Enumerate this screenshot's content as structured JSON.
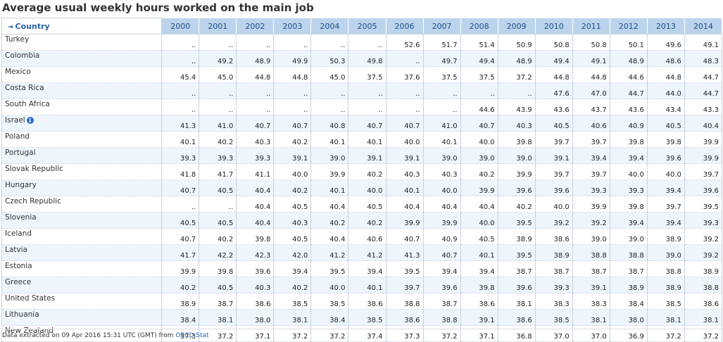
{
  "title": "Average usual weekly hours worked on the main job",
  "table": {
    "country_header": "Country",
    "years": [
      "2000",
      "2001",
      "2002",
      "2003",
      "2004",
      "2005",
      "2006",
      "2007",
      "2008",
      "2009",
      "2010",
      "2011",
      "2012",
      "2013",
      "2014"
    ],
    "rows": [
      {
        "country": "Turkey",
        "info": false,
        "values": [
          "..",
          "..",
          "..",
          "..",
          "..",
          "..",
          "52.6",
          "51.7",
          "51.4",
          "50.9",
          "50.8",
          "50.8",
          "50.1",
          "49.6",
          "49.1"
        ]
      },
      {
        "country": "Colombia",
        "info": false,
        "values": [
          "..",
          "49.2",
          "48.9",
          "49.9",
          "50.3",
          "49.8",
          "..",
          "49.7",
          "49.4",
          "48.9",
          "49.4",
          "49.1",
          "48.9",
          "48.6",
          "48.3"
        ]
      },
      {
        "country": "Mexico",
        "info": false,
        "values": [
          "45.4",
          "45.0",
          "44.8",
          "44.8",
          "45.0",
          "37.5",
          "37.6",
          "37.5",
          "37.5",
          "37.2",
          "44.8",
          "44.8",
          "44.6",
          "44.8",
          "44.7"
        ]
      },
      {
        "country": "Costa Rica",
        "info": false,
        "values": [
          "..",
          "..",
          "..",
          "..",
          "..",
          "..",
          "..",
          "..",
          "..",
          "..",
          "47.6",
          "47.0",
          "44.7",
          "44.0",
          "44.7"
        ]
      },
      {
        "country": "South Africa",
        "info": false,
        "values": [
          "..",
          "..",
          "..",
          "..",
          "..",
          "..",
          "..",
          "..",
          "44.6",
          "43.9",
          "43.6",
          "43.7",
          "43.6",
          "43.4",
          "43.3"
        ]
      },
      {
        "country": "Israel",
        "info": true,
        "values": [
          "41.3",
          "41.0",
          "40.7",
          "40.7",
          "40.8",
          "40.7",
          "40.7",
          "41.0",
          "40.7",
          "40.3",
          "40.5",
          "40.6",
          "40.9",
          "40.5",
          "40.4"
        ]
      },
      {
        "country": "Poland",
        "info": false,
        "values": [
          "40.1",
          "40.2",
          "40.3",
          "40.2",
          "40.1",
          "40.1",
          "40.0",
          "40.1",
          "40.0",
          "39.8",
          "39.7",
          "39.7",
          "39.8",
          "39.8",
          "39.9"
        ]
      },
      {
        "country": "Portugal",
        "info": false,
        "values": [
          "39.3",
          "39.3",
          "39.3",
          "39.1",
          "39.0",
          "39.1",
          "39.1",
          "39.0",
          "39.0",
          "39.0",
          "39.1",
          "39.4",
          "39.4",
          "39.6",
          "39.9"
        ]
      },
      {
        "country": "Slovak Republic",
        "info": false,
        "values": [
          "41.8",
          "41.7",
          "41.1",
          "40.0",
          "39.9",
          "40.2",
          "40.3",
          "40.3",
          "40.2",
          "39.9",
          "39.7",
          "39.7",
          "40.0",
          "40.0",
          "39.7"
        ]
      },
      {
        "country": "Hungary",
        "info": false,
        "values": [
          "40.7",
          "40.5",
          "40.4",
          "40.2",
          "40.1",
          "40.0",
          "40.1",
          "40.0",
          "39.9",
          "39.6",
          "39.6",
          "39.3",
          "39.3",
          "39.4",
          "39.6"
        ]
      },
      {
        "country": "Czech Republic",
        "info": false,
        "values": [
          "..",
          "..",
          "40.4",
          "40.5",
          "40.4",
          "40.5",
          "40.4",
          "40.4",
          "40.4",
          "40.2",
          "40.0",
          "39.9",
          "39.8",
          "39.7",
          "39.5"
        ]
      },
      {
        "country": "Slovenia",
        "info": false,
        "values": [
          "40.5",
          "40.5",
          "40.4",
          "40.3",
          "40.2",
          "40.2",
          "39.9",
          "39.9",
          "40.0",
          "39.5",
          "39.2",
          "39.2",
          "39.4",
          "39.4",
          "39.3"
        ]
      },
      {
        "country": "Iceland",
        "info": false,
        "values": [
          "40.7",
          "40.2",
          "39.8",
          "40.5",
          "40.4",
          "40.6",
          "40.7",
          "40.9",
          "40.5",
          "38.9",
          "38.6",
          "39.0",
          "39.0",
          "38.9",
          "39.2"
        ]
      },
      {
        "country": "Latvia",
        "info": false,
        "values": [
          "41.7",
          "42.2",
          "42.3",
          "42.0",
          "41.2",
          "41.2",
          "41.3",
          "40.7",
          "40.1",
          "39.5",
          "38.9",
          "38.8",
          "38.8",
          "39.0",
          "39.2"
        ]
      },
      {
        "country": "Estonia",
        "info": false,
        "values": [
          "39.9",
          "39.8",
          "39.6",
          "39.4",
          "39.5",
          "39.4",
          "39.5",
          "39.4",
          "39.4",
          "38.7",
          "38.7",
          "38.7",
          "38.7",
          "38.8",
          "38.9"
        ]
      },
      {
        "country": "Greece",
        "info": false,
        "values": [
          "40.2",
          "40.5",
          "40.3",
          "40.2",
          "40.0",
          "40.1",
          "39.7",
          "39.6",
          "39.8",
          "39.6",
          "39.3",
          "39.1",
          "38.9",
          "38.9",
          "38.8"
        ]
      },
      {
        "country": "United States",
        "info": false,
        "values": [
          "38.9",
          "38.7",
          "38.6",
          "38.5",
          "38.5",
          "38.6",
          "38.8",
          "38.7",
          "38.6",
          "38.1",
          "38.3",
          "38.3",
          "38.4",
          "38.5",
          "38.6"
        ]
      },
      {
        "country": "Lithuania",
        "info": false,
        "values": [
          "38.4",
          "38.1",
          "38.0",
          "38.1",
          "38.4",
          "38.5",
          "38.6",
          "38.8",
          "39.1",
          "38.6",
          "38.5",
          "38.1",
          "38.0",
          "38.1",
          "38.1"
        ]
      },
      {
        "country": "New Zealand",
        "info": false,
        "values": [
          "37.3",
          "37.2",
          "37.1",
          "37.2",
          "37.2",
          "37.4",
          "37.3",
          "37.2",
          "37.1",
          "36.8",
          "37.0",
          "37.0",
          "36.9",
          "37.2",
          "37.2"
        ]
      }
    ]
  },
  "footer": {
    "text": "Data extracted on 09 Apr 2016 15:31 UTC (GMT) from ",
    "link_text": "OECD.Stat"
  },
  "icons": {
    "expand": "expand-arrow-icon",
    "info": "info-icon"
  },
  "colors": {
    "header_bg": "#bcd3ec",
    "header_text": "#1d4f8a",
    "stripe": "#eef5fc",
    "link": "#2a62a8"
  }
}
